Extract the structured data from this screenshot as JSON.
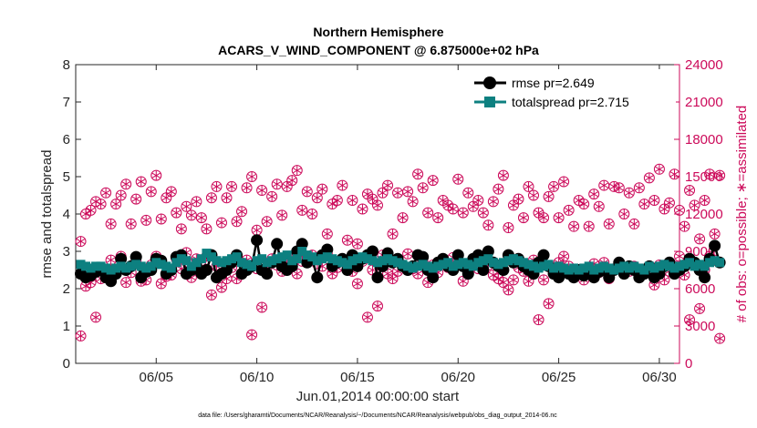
{
  "chart_data": {
    "type": "scatter",
    "title": "Northern Hemisphere",
    "subtitle": "ACARS_V_WIND_COMPONENT @ 6.875000e+02 hPa",
    "xlabel": "Jun.01,2014 00:00:00 start",
    "ylabel_left": "rmse and totalspread",
    "ylabel_right": "# of obs: o=possible; ∗=assimilated",
    "footnote": "data file: /Users/gharamti/Documents/NCAR/Reanalysis/~/Documents/NCAR/Reanalysis/webpub/obs_diag_output_2014-06.nc",
    "xlim": [
      1,
      31
    ],
    "ylim_left": [
      0,
      8
    ],
    "ylim_right": [
      0,
      24000
    ],
    "x_ticks": [
      5,
      10,
      15,
      20,
      25,
      30
    ],
    "x_tick_labels": [
      "06/05",
      "06/10",
      "06/15",
      "06/20",
      "06/25",
      "06/30"
    ],
    "y_left_ticks": [
      "0",
      "1",
      "2",
      "3",
      "4",
      "5",
      "6",
      "7",
      "8"
    ],
    "y_right_ticks": [
      "0",
      "3000",
      "6000",
      "9000",
      "12000",
      "15000",
      "18000",
      "21000",
      "24000"
    ],
    "legend": [
      {
        "label": "rmse pr=2.649",
        "color": "#000000",
        "marker": "circle"
      },
      {
        "label": "totalspread pr=2.715",
        "color": "#0d8080",
        "marker": "square"
      }
    ],
    "colors": {
      "rmse": "#000000",
      "spread": "#0d8080",
      "obs": "#cc0a5a"
    },
    "time_step_days": 0.25,
    "x_start": 1.25,
    "series": [
      {
        "name": "rmse",
        "values": [
          2.4,
          2.3,
          2.35,
          2.45,
          2.5,
          2.3,
          2.2,
          2.4,
          2.8,
          2.5,
          2.6,
          2.85,
          2.3,
          2.45,
          2.5,
          2.8,
          2.75,
          2.4,
          2.5,
          2.85,
          2.9,
          2.4,
          2.5,
          2.6,
          2.4,
          2.5,
          2.9,
          2.3,
          2.4,
          2.5,
          2.7,
          2.9,
          2.4,
          2.5,
          2.6,
          3.3,
          2.5,
          2.4,
          2.7,
          3.2,
          2.6,
          2.5,
          2.6,
          3.0,
          3.2,
          2.7,
          2.8,
          2.3,
          2.9,
          3.05,
          2.6,
          2.7,
          2.8,
          2.5,
          2.9,
          2.6,
          2.8,
          2.9,
          3.0,
          2.3,
          2.6,
          2.95,
          2.7,
          2.8,
          2.6,
          2.5,
          2.6,
          2.9,
          2.85,
          2.5,
          2.3,
          2.7,
          2.8,
          2.6,
          2.5,
          2.9,
          2.6,
          2.4,
          2.8,
          2.9,
          2.5,
          3.0,
          2.7,
          2.6,
          2.5,
          2.9,
          2.7,
          2.8,
          2.6,
          2.5,
          2.4,
          2.7,
          2.9,
          2.6,
          2.4,
          2.3,
          2.5,
          2.4,
          2.3,
          2.5,
          2.35,
          2.4,
          2.3,
          2.45,
          2.5,
          2.3,
          2.5,
          2.7,
          2.4,
          2.6,
          2.5,
          2.3,
          2.4,
          2.6,
          2.3,
          2.4,
          2.6,
          2.7,
          2.4,
          2.5,
          2.6,
          2.8,
          2.7,
          2.5,
          2.3,
          2.8,
          3.15,
          2.7
        ]
      },
      {
        "name": "totalspread",
        "values": [
          2.65,
          2.6,
          2.55,
          2.6,
          2.6,
          2.55,
          2.5,
          2.55,
          2.6,
          2.55,
          2.6,
          2.65,
          2.6,
          2.55,
          2.6,
          2.7,
          2.65,
          2.6,
          2.55,
          2.7,
          2.8,
          2.75,
          2.6,
          2.7,
          2.8,
          2.95,
          2.85,
          2.75,
          2.7,
          2.75,
          2.8,
          2.85,
          2.7,
          2.65,
          2.6,
          2.75,
          2.8,
          2.7,
          2.75,
          2.8,
          2.85,
          2.9,
          2.75,
          2.8,
          3.0,
          2.9,
          2.85,
          2.75,
          2.8,
          2.85,
          2.8,
          2.75,
          2.7,
          2.65,
          2.75,
          2.8,
          2.85,
          2.8,
          2.75,
          2.7,
          2.75,
          2.8,
          2.75,
          2.7,
          2.65,
          2.6,
          2.55,
          2.6,
          2.65,
          2.6,
          2.55,
          2.6,
          2.65,
          2.7,
          2.6,
          2.65,
          2.7,
          2.65,
          2.6,
          2.7,
          2.75,
          2.8,
          2.7,
          2.65,
          2.7,
          2.75,
          2.8,
          2.75,
          2.7,
          2.65,
          2.6,
          2.55,
          2.6,
          2.65,
          2.55,
          2.6,
          2.55,
          2.5,
          2.55,
          2.5,
          2.55,
          2.6,
          2.5,
          2.55,
          2.6,
          2.55,
          2.5,
          2.55,
          2.6,
          2.55,
          2.6,
          2.55,
          2.5,
          2.6,
          2.55,
          2.6,
          2.65,
          2.6,
          2.55,
          2.6,
          2.65,
          2.7,
          2.6,
          2.65,
          2.6,
          2.7,
          2.75,
          2.7
        ]
      },
      {
        "name": "obs_possible",
        "values": [
          9800,
          12000,
          12300,
          13000,
          12800,
          13700,
          11200,
          12800,
          13500,
          14400,
          11200,
          13200,
          14600,
          11500,
          13800,
          15100,
          11600,
          13300,
          13800,
          12100,
          10800,
          12600,
          11900,
          13000,
          11700,
          10800,
          13300,
          14200,
          11300,
          13300,
          14200,
          11400,
          12200,
          14100,
          15000,
          10700,
          13900,
          11400,
          13400,
          14400,
          11900,
          14200,
          14700,
          15500,
          12300,
          13800,
          12000,
          13300,
          14000,
          10400,
          12800,
          13100,
          14300,
          9900,
          13100,
          9600,
          12400,
          13600,
          13200,
          12700,
          13700,
          14300,
          10400,
          13700,
          11700,
          13800,
          13000,
          15200,
          14100,
          12100,
          14700,
          11700,
          13100,
          12700,
          12400,
          14800,
          12100,
          13700,
          12600,
          13100,
          12100,
          11100,
          13000,
          14000,
          15100,
          10900,
          12700,
          13200,
          11700,
          14200,
          13500,
          12100,
          11700,
          13400,
          14200,
          11700,
          14600,
          12300,
          11000,
          13100,
          12800,
          11000,
          13600,
          12600,
          14300,
          11200,
          14200,
          14100,
          12000,
          13700,
          11200,
          14100,
          12800,
          14900,
          13100,
          15600,
          12400,
          12900,
          15200,
          12300,
          11000,
          13900,
          12700,
          10000,
          13100,
          15200,
          10400,
          15100
        ]
      },
      {
        "name": "obs_assimilated",
        "values": [
          2200,
          6200,
          6500,
          3700,
          6800,
          7500,
          8300,
          7400,
          8600,
          6500,
          7300,
          8200,
          6600,
          6700,
          7900,
          8600,
          6400,
          7000,
          7100,
          8400,
          7600,
          8900,
          6900,
          8400,
          7800,
          8600,
          5500,
          7800,
          6100,
          6800,
          7700,
          6800,
          7200,
          8300,
          2300,
          7600,
          4500,
          7700,
          8400,
          7900,
          7400,
          7800,
          8400,
          7200,
          8200,
          8600,
          8700,
          8000,
          7800,
          8800,
          7200,
          7700,
          8300,
          7600,
          7400,
          6400,
          8200,
          3700,
          7500,
          4600,
          8700,
          7200,
          6800,
          7400,
          7900,
          8800,
          7600,
          7200,
          8200,
          6500,
          7900,
          7300,
          8300,
          7700,
          8500,
          8300,
          6600,
          7400,
          8000,
          7600,
          8600,
          7900,
          7100,
          6800,
          6500,
          5900,
          6700,
          7700,
          7400,
          6600,
          8300,
          3500,
          6700,
          4800,
          7200,
          8100,
          8600,
          7800,
          7400,
          7200,
          6700,
          7700,
          8000,
          7300,
          8100,
          6800,
          7600,
          8000,
          7700,
          7400,
          7800,
          6900,
          7200,
          7600,
          6300,
          7900,
          6700,
          7400,
          7800,
          8600,
          7100,
          3500,
          8000,
          4400,
          7500,
          8600,
          8300,
          2000
        ]
      }
    ]
  }
}
